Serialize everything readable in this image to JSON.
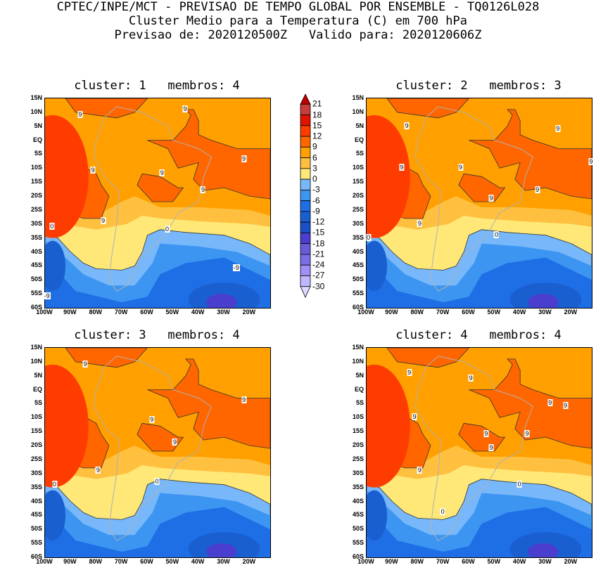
{
  "header": {
    "line1": "CPTEC/INPE/MCT - PREVISAO DE TEMPO GLOBAL POR ENSEMBLE - TQ0126L028",
    "line2": "Cluster Medio para a Temperatura (C) em 700 hPa",
    "line3": "Previsao de: 2020120500Z   Valido para: 2020120606Z"
  },
  "lat_labels": [
    "15N",
    "10N",
    "5N",
    "EQ",
    "5S",
    "10S",
    "15S",
    "20S",
    "25S",
    "30S",
    "35S",
    "40S",
    "45S",
    "50S",
    "55S",
    "60S"
  ],
  "lon_labels": [
    "100W",
    "90W",
    "80W",
    "70W",
    "60W",
    "50W",
    "40W",
    "30W",
    "20W"
  ],
  "colorbar": {
    "levels": [
      "21",
      "18",
      "15",
      "12",
      "9",
      "6",
      "3",
      "0",
      "-3",
      "-6",
      "-9",
      "-12",
      "-15",
      "-18",
      "-21",
      "-24",
      "-27",
      "-30"
    ],
    "colors": [
      "#c00000",
      "#c83c3c",
      "#e01400",
      "#ff3c00",
      "#ff6600",
      "#ffa000",
      "#ffc040",
      "#ffe878",
      "#78b8fa",
      "#3c95f0",
      "#1e6ee6",
      "#1a5fd0",
      "#1a4fc8",
      "#4a3ecf",
      "#6a5ad8",
      "#7a6ee6",
      "#a090f5",
      "#c0b8ff",
      "#dcd8ff"
    ]
  },
  "panels": [
    {
      "title": "cluster: 1   membros: 4",
      "labels": [
        {
          "t": "9",
          "lon": -86,
          "lat": 9
        },
        {
          "t": "9",
          "lon": -45,
          "lat": 11
        },
        {
          "t": "9",
          "lon": -81,
          "lat": -11
        },
        {
          "t": "9",
          "lon": -54,
          "lat": -12
        },
        {
          "t": "9",
          "lon": -22,
          "lat": -7
        },
        {
          "t": "9",
          "lon": -38,
          "lat": -18
        },
        {
          "t": "9",
          "lon": -77,
          "lat": -29
        },
        {
          "t": "0",
          "lon": -97,
          "lat": -31
        },
        {
          "t": "0",
          "lon": -52,
          "lat": -32
        },
        {
          "t": "-9",
          "lon": -25,
          "lat": -46
        },
        {
          "t": "-9",
          "lon": -99,
          "lat": -56
        }
      ]
    },
    {
      "title": "cluster: 2   membros: 3",
      "labels": [
        {
          "t": "9",
          "lon": -84,
          "lat": 5
        },
        {
          "t": "9",
          "lon": -25,
          "lat": 4
        },
        {
          "t": "9",
          "lon": -86,
          "lat": -10
        },
        {
          "t": "9",
          "lon": -63,
          "lat": -10
        },
        {
          "t": "9",
          "lon": -12,
          "lat": -8
        },
        {
          "t": "9",
          "lon": -33,
          "lat": -18
        },
        {
          "t": "9",
          "lon": -51,
          "lat": -21
        },
        {
          "t": "9",
          "lon": -79,
          "lat": -30
        },
        {
          "t": "0",
          "lon": -99,
          "lat": -35
        },
        {
          "t": "0",
          "lon": -49,
          "lat": -34
        }
      ]
    },
    {
      "title": "cluster: 3   membros: 4",
      "labels": [
        {
          "t": "9",
          "lon": -84,
          "lat": 9
        },
        {
          "t": "9",
          "lon": -22,
          "lat": -4
        },
        {
          "t": "9",
          "lon": -58,
          "lat": -11
        },
        {
          "t": "9",
          "lon": -49,
          "lat": -19
        },
        {
          "t": "9",
          "lon": -79,
          "lat": -29
        },
        {
          "t": "0",
          "lon": -96,
          "lat": -34
        },
        {
          "t": "0",
          "lon": -56,
          "lat": -33
        }
      ]
    },
    {
      "title": "cluster: 4   membros: 4",
      "labels": [
        {
          "t": "9",
          "lon": -83,
          "lat": 6
        },
        {
          "t": "9",
          "lon": -59,
          "lat": 4
        },
        {
          "t": "9",
          "lon": -81,
          "lat": -10
        },
        {
          "t": "9",
          "lon": -28,
          "lat": -5
        },
        {
          "t": "9",
          "lon": -22,
          "lat": -6
        },
        {
          "t": "9",
          "lon": -53,
          "lat": -16
        },
        {
          "t": "9",
          "lon": -37,
          "lat": -16
        },
        {
          "t": "9",
          "lon": -51,
          "lat": -21
        },
        {
          "t": "9",
          "lon": -79,
          "lat": -29
        },
        {
          "t": "0",
          "lon": -40,
          "lat": -34
        },
        {
          "t": "0",
          "lon": -70,
          "lat": -44
        }
      ]
    }
  ]
}
